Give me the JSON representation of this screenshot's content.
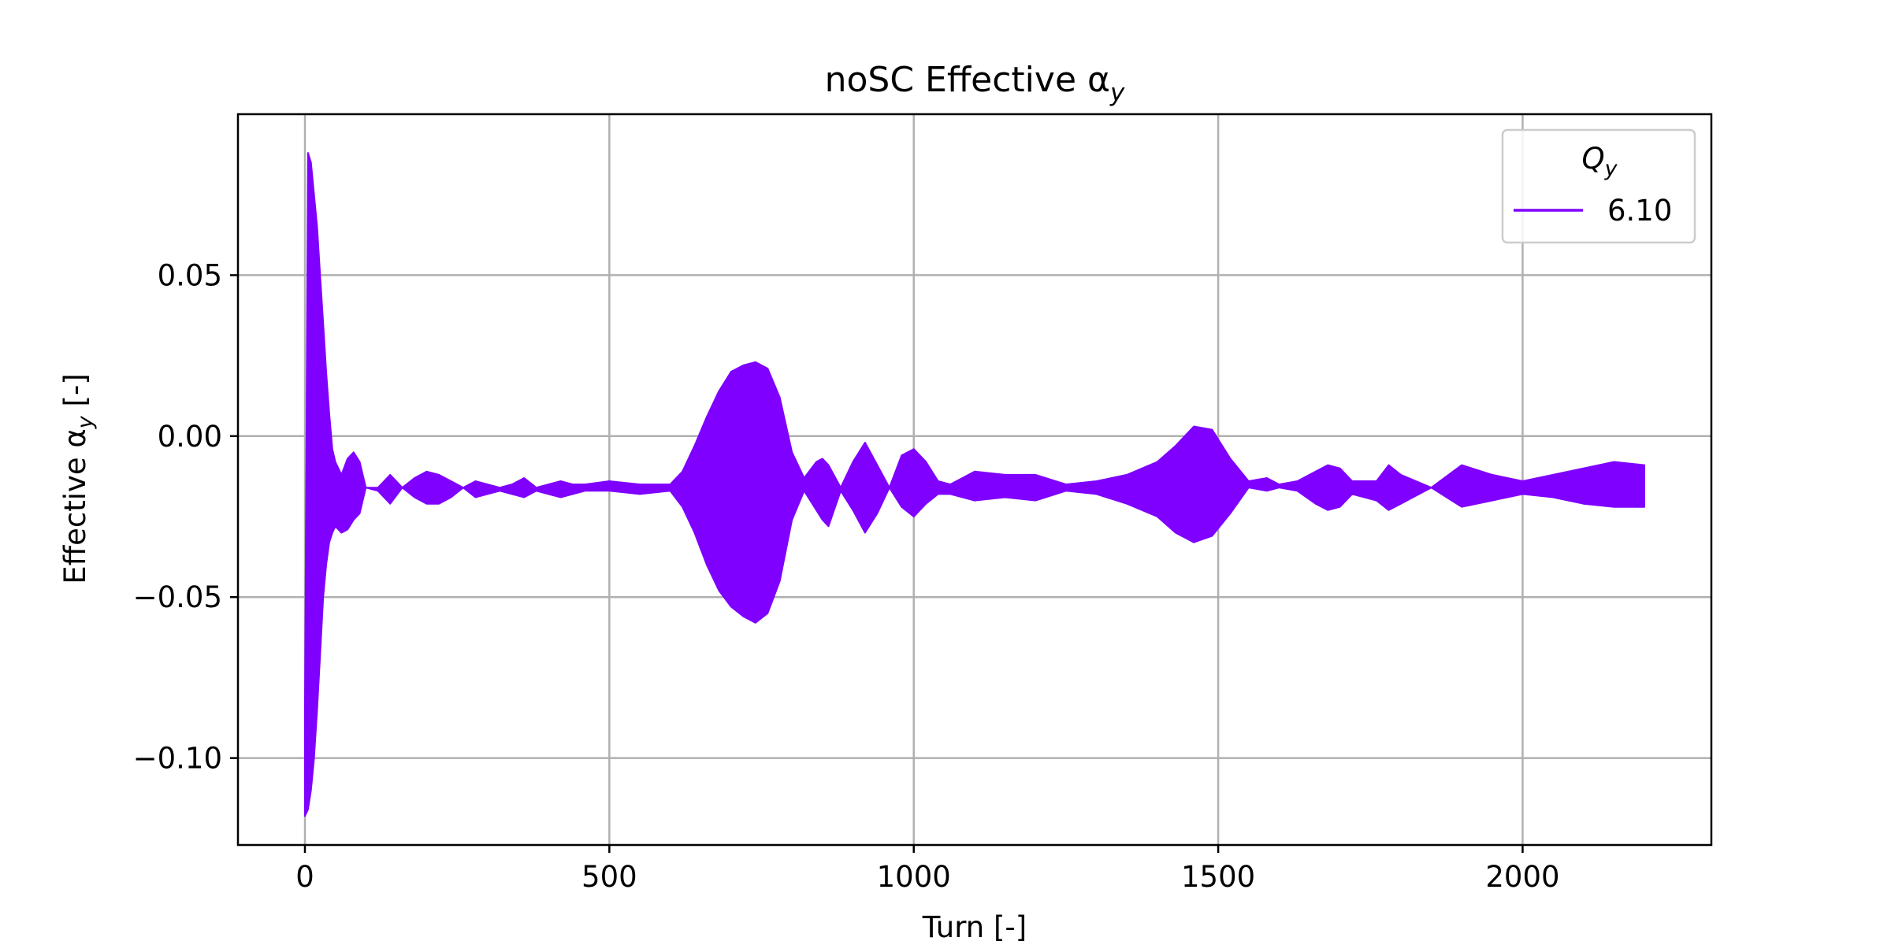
{
  "chart_data": {
    "type": "area",
    "title": "noSC Effective α",
    "title_subscript": "y",
    "xlabel": "Turn [-]",
    "ylabel": "Effective α",
    "ylabel_subscript": "y",
    "ylabel_suffix": " [-]",
    "xlim": [
      -110,
      2310
    ],
    "ylim": [
      -0.127,
      0.1
    ],
    "x_ticks": [
      0,
      500,
      1000,
      1500,
      2000
    ],
    "x_tick_labels": [
      "0",
      "500",
      "1000",
      "1500",
      "2000"
    ],
    "y_ticks": [
      0.05,
      0.0,
      -0.05,
      -0.1
    ],
    "y_tick_labels": [
      "0.05",
      "0.00",
      "−0.05",
      "−0.10"
    ],
    "grid": true,
    "legend": {
      "title": "Q",
      "title_subscript": "y",
      "placement": "top-right"
    },
    "series": [
      {
        "name": "6.10",
        "color": "#7f00ff",
        "envelope": {
          "x": [
            0,
            5,
            10,
            15,
            20,
            25,
            30,
            35,
            40,
            45,
            50,
            60,
            70,
            80,
            90,
            100,
            120,
            140,
            160,
            180,
            200,
            220,
            240,
            260,
            280,
            300,
            320,
            340,
            360,
            380,
            400,
            420,
            440,
            460,
            500,
            550,
            600,
            620,
            640,
            660,
            680,
            700,
            720,
            740,
            760,
            780,
            800,
            820,
            840,
            850,
            860,
            880,
            900,
            920,
            940,
            960,
            980,
            1000,
            1020,
            1040,
            1060,
            1100,
            1150,
            1200,
            1250,
            1300,
            1350,
            1400,
            1430,
            1460,
            1490,
            1520,
            1550,
            1580,
            1600,
            1630,
            1660,
            1680,
            1700,
            1720,
            1760,
            1780,
            1800,
            1850,
            1900,
            1950,
            2000,
            2050,
            2100,
            2150,
            2200
          ],
          "upper": [
            -0.083,
            0.088,
            0.085,
            0.075,
            0.065,
            0.05,
            0.035,
            0.02,
            0.007,
            -0.004,
            -0.008,
            -0.012,
            -0.007,
            -0.005,
            -0.008,
            -0.016,
            -0.016,
            -0.012,
            -0.016,
            -0.013,
            -0.011,
            -0.012,
            -0.014,
            -0.016,
            -0.014,
            -0.015,
            -0.016,
            -0.015,
            -0.013,
            -0.016,
            -0.015,
            -0.014,
            -0.015,
            -0.015,
            -0.014,
            -0.015,
            -0.015,
            -0.011,
            -0.003,
            0.006,
            0.014,
            0.02,
            0.022,
            0.023,
            0.021,
            0.012,
            -0.005,
            -0.013,
            -0.008,
            -0.007,
            -0.009,
            -0.016,
            -0.008,
            -0.002,
            -0.009,
            -0.016,
            -0.006,
            -0.004,
            -0.008,
            -0.014,
            -0.015,
            -0.011,
            -0.012,
            -0.012,
            -0.015,
            -0.014,
            -0.012,
            -0.008,
            -0.003,
            0.003,
            0.002,
            -0.007,
            -0.014,
            -0.013,
            -0.015,
            -0.014,
            -0.011,
            -0.009,
            -0.01,
            -0.014,
            -0.014,
            -0.009,
            -0.012,
            -0.016,
            -0.009,
            -0.012,
            -0.014,
            -0.012,
            -0.01,
            -0.008,
            -0.009
          ],
          "lower": [
            -0.118,
            -0.116,
            -0.11,
            -0.1,
            -0.085,
            -0.068,
            -0.05,
            -0.04,
            -0.033,
            -0.03,
            -0.028,
            -0.03,
            -0.029,
            -0.026,
            -0.024,
            -0.016,
            -0.017,
            -0.021,
            -0.016,
            -0.019,
            -0.021,
            -0.021,
            -0.019,
            -0.016,
            -0.019,
            -0.018,
            -0.017,
            -0.018,
            -0.019,
            -0.017,
            -0.018,
            -0.019,
            -0.018,
            -0.017,
            -0.017,
            -0.018,
            -0.017,
            -0.022,
            -0.03,
            -0.04,
            -0.048,
            -0.053,
            -0.056,
            -0.058,
            -0.055,
            -0.045,
            -0.026,
            -0.017,
            -0.023,
            -0.026,
            -0.028,
            -0.017,
            -0.023,
            -0.03,
            -0.024,
            -0.016,
            -0.022,
            -0.025,
            -0.021,
            -0.018,
            -0.018,
            -0.02,
            -0.019,
            -0.02,
            -0.017,
            -0.018,
            -0.021,
            -0.025,
            -0.03,
            -0.033,
            -0.031,
            -0.024,
            -0.016,
            -0.017,
            -0.016,
            -0.017,
            -0.021,
            -0.023,
            -0.022,
            -0.018,
            -0.02,
            -0.023,
            -0.021,
            -0.016,
            -0.022,
            -0.02,
            -0.018,
            -0.019,
            -0.021,
            -0.022,
            -0.022
          ]
        }
      }
    ]
  }
}
